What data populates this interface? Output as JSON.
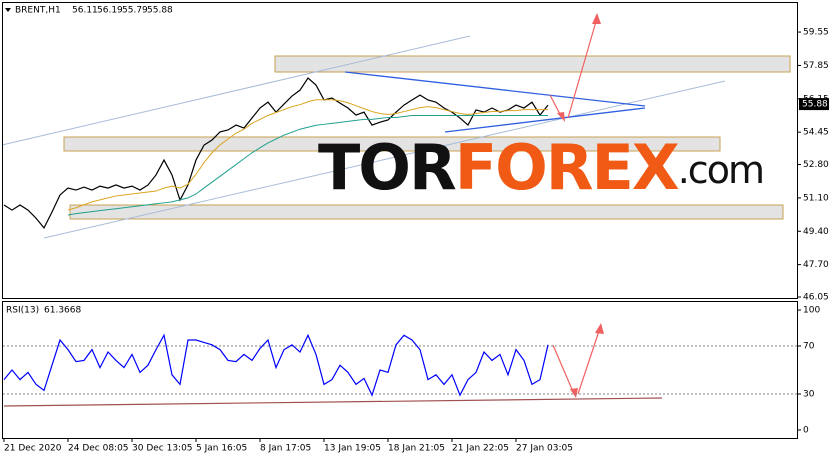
{
  "chart_data": [
    {
      "type": "line",
      "title": "BRENT,H1",
      "ohlc": [
        56.11,
        56.19,
        55.79,
        55.88
      ],
      "categories": [
        "21 Dec 2020",
        null,
        null,
        null,
        null,
        null,
        null,
        null,
        "24 Dec 08:05",
        null,
        null,
        null,
        null,
        null,
        null,
        null,
        "30 Dec 13:05",
        null,
        null,
        null,
        null,
        null,
        null,
        null,
        "5 Jan 16:05",
        null,
        null,
        null,
        null,
        null,
        null,
        null,
        "8 Jan 17:05",
        null,
        null,
        null,
        null,
        null,
        null,
        null,
        "13 Jan 19:05",
        null,
        null,
        null,
        null,
        null,
        null,
        null,
        "18 Jan 21:05",
        null,
        null,
        null,
        null,
        null,
        null,
        null,
        "21 Jan 22:05",
        null,
        null,
        null,
        null,
        null,
        null,
        null,
        "27 Jan 03:05",
        null,
        null,
        null,
        null
      ],
      "series": [
        {
          "color": "#000000",
          "values": [
            50.74,
            50.48,
            50.74,
            50.48,
            50.07,
            49.57,
            50.38,
            51.25,
            51.6,
            51.5,
            51.65,
            51.5,
            51.7,
            51.6,
            51.76,
            51.6,
            51.7,
            51.5,
            51.76,
            52.27,
            53.03,
            52.27,
            50.99,
            51.76,
            53.03,
            53.79,
            54.05,
            54.46,
            54.56,
            54.81,
            54.66,
            55.17,
            55.68,
            55.98,
            55.47,
            55.88,
            56.29,
            56.59,
            57.21,
            56.85,
            56.09,
            56.19,
            55.93,
            55.68,
            55.32,
            55.47,
            54.81,
            54.96,
            55.07,
            55.47,
            55.83,
            56.09,
            56.34,
            56.09,
            55.98,
            55.68,
            55.47,
            55.17,
            54.81,
            55.58,
            55.47,
            55.68,
            55.47,
            55.58,
            55.83,
            55.68,
            55.98,
            55.32,
            55.83
          ]
        },
        {
          "color": "#daa520",
          "values": [
            null,
            null,
            null,
            null,
            null,
            null,
            null,
            null,
            50.48,
            50.6,
            50.75,
            50.9,
            51.0,
            51.1,
            51.2,
            51.25,
            51.3,
            51.35,
            51.4,
            51.45,
            51.6,
            51.7,
            51.6,
            51.8,
            52.3,
            52.9,
            53.4,
            53.8,
            54.1,
            54.4,
            54.6,
            54.9,
            55.1,
            55.3,
            55.45,
            55.6,
            55.75,
            55.85,
            56.0,
            56.1,
            56.1,
            56.1,
            56.05,
            55.95,
            55.8,
            55.65,
            55.5,
            55.4,
            55.35,
            55.4,
            55.5,
            55.6,
            55.7,
            55.75,
            55.7,
            55.6,
            55.5,
            55.4,
            55.35,
            55.4,
            55.45,
            55.5,
            55.5,
            55.55,
            55.55,
            55.6,
            55.6,
            55.6,
            55.6
          ]
        },
        {
          "color": "#20a090",
          "values": [
            null,
            null,
            null,
            null,
            null,
            null,
            null,
            null,
            50.23,
            50.3,
            50.35,
            50.4,
            50.45,
            50.5,
            50.55,
            50.6,
            50.65,
            50.7,
            50.75,
            50.8,
            50.85,
            50.9,
            51.0,
            51.1,
            51.3,
            51.6,
            51.9,
            52.2,
            52.5,
            52.8,
            53.1,
            53.4,
            53.65,
            53.9,
            54.1,
            54.3,
            54.45,
            54.6,
            54.7,
            54.8,
            54.85,
            54.9,
            54.95,
            55.0,
            55.05,
            55.1,
            55.1,
            55.15,
            55.2,
            55.2,
            55.25,
            55.3,
            55.3,
            55.3,
            55.3,
            55.3,
            55.3,
            55.3,
            55.3,
            55.3,
            55.3,
            55.3,
            55.3,
            55.3,
            55.3,
            55.3,
            55.3,
            55.3,
            55.3
          ]
        }
      ],
      "ylim": [
        46.0,
        60.98
      ],
      "yticks": [
        59.55,
        57.85,
        56.15,
        54.45,
        {
          "value": 52.8,
          "label": "52.80"
        },
        {
          "value": 51.1,
          "label": "51.10"
        },
        {
          "value": 49.4,
          "label": "49.40"
        },
        {
          "value": 47.7,
          "label": "47.70"
        },
        46.05
      ],
      "watermark": [
        "TOR",
        "FOREX",
        ".com"
      ]
    },
    {
      "type": "line",
      "title": "RSI(13)",
      "value": 61.3668,
      "series": [
        {
          "color": "#0000ff",
          "values": [
            42,
            50,
            42,
            48,
            38,
            33,
            54,
            75,
            67,
            57,
            58,
            67,
            52,
            65,
            58,
            52,
            63,
            48,
            54,
            67,
            79,
            46,
            38,
            75,
            75,
            73,
            71,
            67,
            58,
            57,
            63,
            58,
            68,
            75,
            52,
            67,
            71,
            65,
            79,
            63,
            38,
            42,
            54,
            48,
            38,
            43,
            29,
            50,
            48,
            71,
            79,
            75,
            67,
            42,
            46,
            38,
            46,
            29,
            42,
            48,
            65,
            58,
            63,
            46,
            67,
            58,
            38,
            42,
            71
          ]
        }
      ],
      "ylim": [
        -6.7,
        106.7
      ],
      "yticks": [
        100,
        70,
        30,
        0
      ],
      "levels": [
        70,
        30
      ]
    }
  ]
}
